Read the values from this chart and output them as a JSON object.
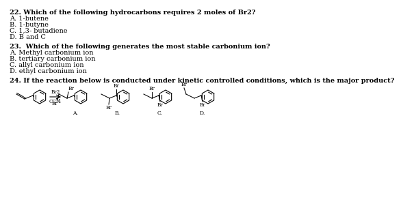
{
  "bg_color": "#ffffff",
  "text_color": "#000000",
  "q22": "22. Which of the following hydrocarbons requires 2 moles of Br2?",
  "q22a": "A. 1-butene",
  "q22b": "B. 1-butyne",
  "q22c": "C. 1,3- butadiene",
  "q22d": "D. B and C",
  "q23": "23.  Which of the following generates the most stable carbonium ion?",
  "q23a": "A. Methyl carbonium ion",
  "q23b": "B. tertiary carbonium ion",
  "q23c": "C. allyl carbonium ion",
  "q23d": "D. ethyl carbonium ion",
  "q24": "24. If the reaction below is conducted under kinetic controlled conditions, which is the major product?",
  "label_a": "A.",
  "label_b": "B.",
  "label_c": "C.",
  "label_d": "D.",
  "reagent_top": "Br2",
  "reagent_bot": "CCl4",
  "br_label": "Br",
  "fontsize_question": 7.0,
  "fontsize_answer": 7.0,
  "fontsize_small": 5.2,
  "fontsize_label": 5.5
}
